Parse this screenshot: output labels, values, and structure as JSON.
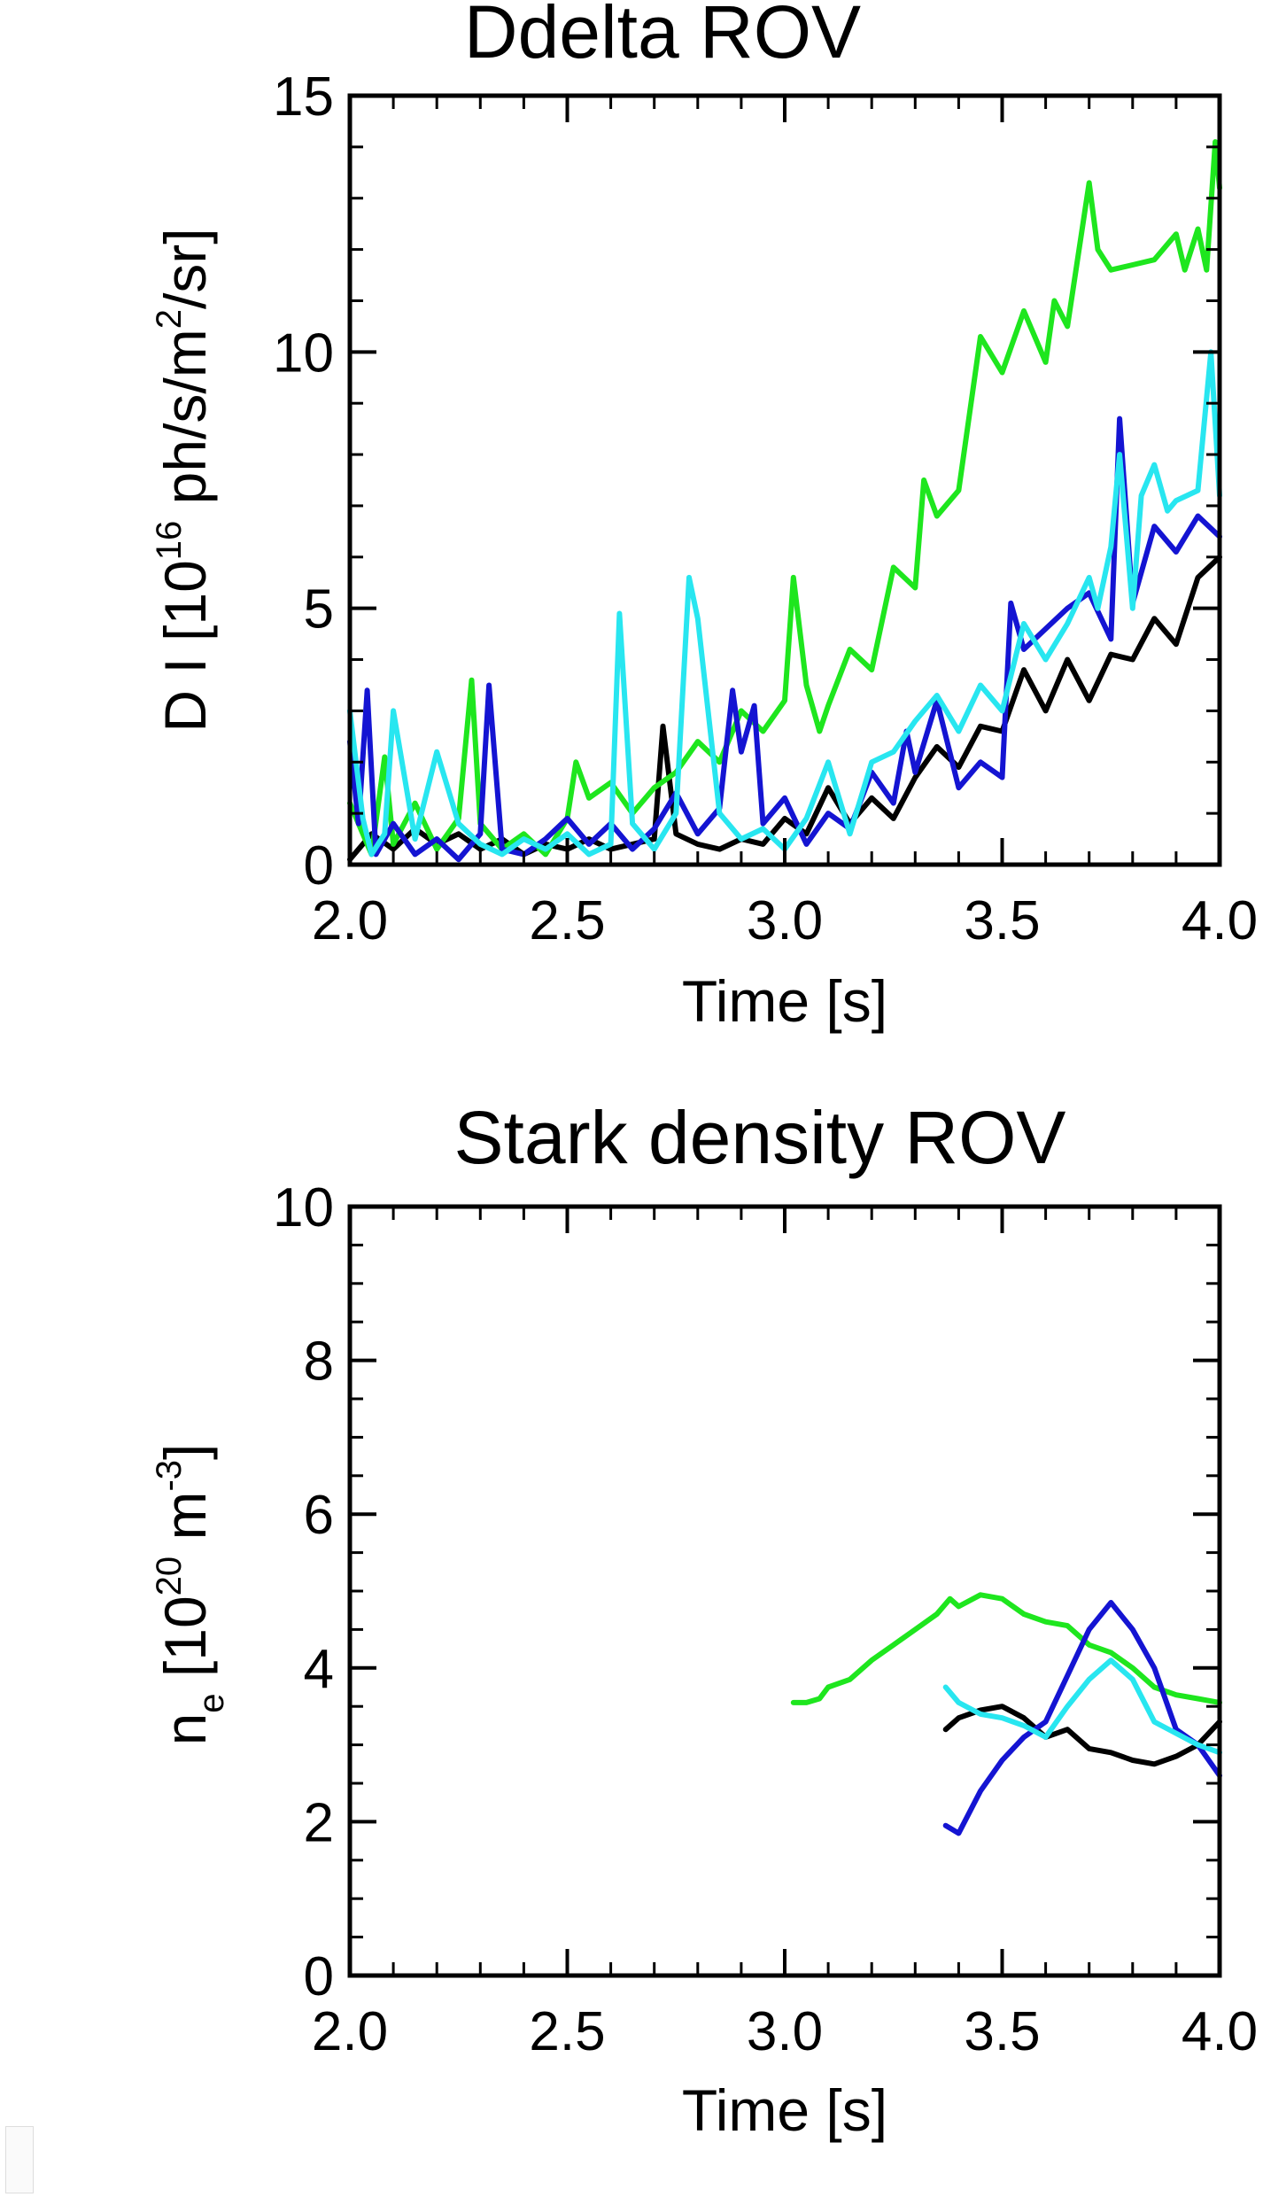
{
  "colors": {
    "black": "#000000",
    "green": "#1ee61e",
    "blue": "#1414d2",
    "cyan": "#28e6f0"
  },
  "chart_data": [
    {
      "type": "line",
      "title": "Ddelta ROV",
      "xlabel": "Time [s]",
      "ylabel": {
        "pre": "D I [10",
        "sup1": "16",
        "mid": " ph/s/m",
        "sup2": "2",
        "post": "/sr]"
      },
      "xlim": [
        2.0,
        4.0
      ],
      "ylim": [
        0,
        15
      ],
      "xticks": [
        "2.0",
        "2.5",
        "3.0",
        "3.5",
        "4.0"
      ],
      "yticks": [
        "0",
        "5",
        "10",
        "15"
      ],
      "series": [
        {
          "color": "#000000",
          "points": [
            [
              2.0,
              0.1
            ],
            [
              2.05,
              0.6
            ],
            [
              2.1,
              0.3
            ],
            [
              2.15,
              0.7
            ],
            [
              2.2,
              0.4
            ],
            [
              2.25,
              0.6
            ],
            [
              2.3,
              0.3
            ],
            [
              2.35,
              0.5
            ],
            [
              2.4,
              0.2
            ],
            [
              2.45,
              0.4
            ],
            [
              2.5,
              0.3
            ],
            [
              2.55,
              0.5
            ],
            [
              2.6,
              0.3
            ],
            [
              2.65,
              0.4
            ],
            [
              2.7,
              0.5
            ],
            [
              2.72,
              2.7
            ],
            [
              2.75,
              0.6
            ],
            [
              2.8,
              0.4
            ],
            [
              2.85,
              0.3
            ],
            [
              2.9,
              0.5
            ],
            [
              2.95,
              0.4
            ],
            [
              3.0,
              0.9
            ],
            [
              3.05,
              0.6
            ],
            [
              3.1,
              1.5
            ],
            [
              3.15,
              0.8
            ],
            [
              3.2,
              1.3
            ],
            [
              3.25,
              0.9
            ],
            [
              3.3,
              1.7
            ],
            [
              3.35,
              2.3
            ],
            [
              3.4,
              1.9
            ],
            [
              3.45,
              2.7
            ],
            [
              3.5,
              2.6
            ],
            [
              3.55,
              3.8
            ],
            [
              3.6,
              3.0
            ],
            [
              3.65,
              4.0
            ],
            [
              3.7,
              3.2
            ],
            [
              3.75,
              4.1
            ],
            [
              3.8,
              4.0
            ],
            [
              3.85,
              4.8
            ],
            [
              3.9,
              4.3
            ],
            [
              3.95,
              5.6
            ],
            [
              4.0,
              6.0
            ]
          ]
        },
        {
          "color": "#1ee61e",
          "points": [
            [
              2.0,
              1.2
            ],
            [
              2.03,
              0.6
            ],
            [
              2.05,
              0.2
            ],
            [
              2.08,
              2.1
            ],
            [
              2.1,
              0.4
            ],
            [
              2.15,
              1.2
            ],
            [
              2.2,
              0.3
            ],
            [
              2.25,
              0.9
            ],
            [
              2.28,
              3.6
            ],
            [
              2.3,
              0.8
            ],
            [
              2.35,
              0.3
            ],
            [
              2.4,
              0.6
            ],
            [
              2.45,
              0.2
            ],
            [
              2.5,
              0.9
            ],
            [
              2.52,
              2.0
            ],
            [
              2.55,
              1.3
            ],
            [
              2.6,
              1.6
            ],
            [
              2.65,
              1.0
            ],
            [
              2.7,
              1.5
            ],
            [
              2.75,
              1.8
            ],
            [
              2.8,
              2.4
            ],
            [
              2.85,
              2.0
            ],
            [
              2.9,
              3.0
            ],
            [
              2.95,
              2.6
            ],
            [
              3.0,
              3.2
            ],
            [
              3.02,
              5.6
            ],
            [
              3.05,
              3.5
            ],
            [
              3.08,
              2.6
            ],
            [
              3.1,
              3.1
            ],
            [
              3.15,
              4.2
            ],
            [
              3.2,
              3.8
            ],
            [
              3.25,
              5.8
            ],
            [
              3.3,
              5.4
            ],
            [
              3.32,
              7.5
            ],
            [
              3.35,
              6.8
            ],
            [
              3.4,
              7.3
            ],
            [
              3.45,
              10.3
            ],
            [
              3.5,
              9.6
            ],
            [
              3.55,
              10.8
            ],
            [
              3.6,
              9.8
            ],
            [
              3.62,
              11.0
            ],
            [
              3.65,
              10.5
            ],
            [
              3.7,
              13.3
            ],
            [
              3.72,
              12.0
            ],
            [
              3.75,
              11.6
            ],
            [
              3.8,
              11.7
            ],
            [
              3.85,
              11.8
            ],
            [
              3.9,
              12.3
            ],
            [
              3.92,
              11.6
            ],
            [
              3.95,
              12.4
            ],
            [
              3.97,
              11.6
            ],
            [
              3.99,
              14.1
            ],
            [
              4.0,
              13.2
            ]
          ]
        },
        {
          "color": "#1414d2",
          "points": [
            [
              2.0,
              2.4
            ],
            [
              2.02,
              0.8
            ],
            [
              2.04,
              3.4
            ],
            [
              2.06,
              0.2
            ],
            [
              2.1,
              0.8
            ],
            [
              2.15,
              0.2
            ],
            [
              2.2,
              0.5
            ],
            [
              2.25,
              0.1
            ],
            [
              2.3,
              0.6
            ],
            [
              2.32,
              3.5
            ],
            [
              2.35,
              0.3
            ],
            [
              2.4,
              0.2
            ],
            [
              2.45,
              0.5
            ],
            [
              2.5,
              0.9
            ],
            [
              2.55,
              0.4
            ],
            [
              2.6,
              0.8
            ],
            [
              2.65,
              0.3
            ],
            [
              2.7,
              0.7
            ],
            [
              2.75,
              1.4
            ],
            [
              2.8,
              0.6
            ],
            [
              2.85,
              1.1
            ],
            [
              2.88,
              3.4
            ],
            [
              2.9,
              2.2
            ],
            [
              2.93,
              3.1
            ],
            [
              2.95,
              0.8
            ],
            [
              3.0,
              1.3
            ],
            [
              3.05,
              0.4
            ],
            [
              3.1,
              1.0
            ],
            [
              3.15,
              0.7
            ],
            [
              3.2,
              1.8
            ],
            [
              3.25,
              1.2
            ],
            [
              3.28,
              2.6
            ],
            [
              3.3,
              1.8
            ],
            [
              3.35,
              3.2
            ],
            [
              3.4,
              1.5
            ],
            [
              3.45,
              2.0
            ],
            [
              3.5,
              1.7
            ],
            [
              3.52,
              5.1
            ],
            [
              3.55,
              4.2
            ],
            [
              3.6,
              4.6
            ],
            [
              3.65,
              5.0
            ],
            [
              3.7,
              5.3
            ],
            [
              3.75,
              4.4
            ],
            [
              3.77,
              8.7
            ],
            [
              3.8,
              5.1
            ],
            [
              3.85,
              6.6
            ],
            [
              3.9,
              6.1
            ],
            [
              3.95,
              6.8
            ],
            [
              4.0,
              6.4
            ]
          ]
        },
        {
          "color": "#28e6f0",
          "points": [
            [
              2.0,
              3.0
            ],
            [
              2.03,
              0.9
            ],
            [
              2.05,
              0.2
            ],
            [
              2.08,
              0.6
            ],
            [
              2.1,
              3.0
            ],
            [
              2.15,
              0.5
            ],
            [
              2.2,
              2.2
            ],
            [
              2.25,
              0.8
            ],
            [
              2.3,
              0.4
            ],
            [
              2.35,
              0.2
            ],
            [
              2.4,
              0.5
            ],
            [
              2.45,
              0.3
            ],
            [
              2.5,
              0.6
            ],
            [
              2.55,
              0.2
            ],
            [
              2.6,
              0.4
            ],
            [
              2.62,
              4.9
            ],
            [
              2.65,
              0.8
            ],
            [
              2.7,
              0.3
            ],
            [
              2.75,
              1.0
            ],
            [
              2.78,
              5.6
            ],
            [
              2.8,
              4.8
            ],
            [
              2.85,
              1.0
            ],
            [
              2.9,
              0.5
            ],
            [
              2.95,
              0.7
            ],
            [
              3.0,
              0.3
            ],
            [
              3.05,
              0.9
            ],
            [
              3.1,
              2.0
            ],
            [
              3.15,
              0.6
            ],
            [
              3.2,
              2.0
            ],
            [
              3.25,
              2.2
            ],
            [
              3.3,
              2.8
            ],
            [
              3.35,
              3.3
            ],
            [
              3.4,
              2.6
            ],
            [
              3.45,
              3.5
            ],
            [
              3.5,
              3.0
            ],
            [
              3.55,
              4.7
            ],
            [
              3.6,
              4.0
            ],
            [
              3.65,
              4.7
            ],
            [
              3.7,
              5.6
            ],
            [
              3.72,
              5.0
            ],
            [
              3.75,
              6.2
            ],
            [
              3.77,
              8.0
            ],
            [
              3.8,
              5.0
            ],
            [
              3.82,
              7.2
            ],
            [
              3.85,
              7.8
            ],
            [
              3.88,
              6.9
            ],
            [
              3.9,
              7.1
            ],
            [
              3.95,
              7.3
            ],
            [
              3.98,
              10.0
            ],
            [
              4.0,
              7.2
            ]
          ]
        }
      ]
    },
    {
      "type": "line",
      "title": "Stark density ROV",
      "xlabel": "Time [s]",
      "ylabel": {
        "pre": "n",
        "sub": "e",
        "mid": " [10",
        "sup1": "20",
        "mid2": " m",
        "sup2": "-3",
        "post": "]"
      },
      "xlim": [
        2.0,
        4.0
      ],
      "ylim": [
        0,
        10
      ],
      "xticks": [
        "2.0",
        "2.5",
        "3.0",
        "3.5",
        "4.0"
      ],
      "yticks": [
        "0",
        "2",
        "4",
        "6",
        "8",
        "10"
      ],
      "series": [
        {
          "color": "#1ee61e",
          "points": [
            [
              3.02,
              3.55
            ],
            [
              3.05,
              3.55
            ],
            [
              3.08,
              3.6
            ],
            [
              3.1,
              3.75
            ],
            [
              3.15,
              3.85
            ],
            [
              3.2,
              4.1
            ],
            [
              3.25,
              4.3
            ],
            [
              3.3,
              4.5
            ],
            [
              3.35,
              4.7
            ],
            [
              3.38,
              4.9
            ],
            [
              3.4,
              4.8
            ],
            [
              3.45,
              4.95
            ],
            [
              3.5,
              4.9
            ],
            [
              3.55,
              4.7
            ],
            [
              3.6,
              4.6
            ],
            [
              3.65,
              4.55
            ],
            [
              3.7,
              4.3
            ],
            [
              3.75,
              4.2
            ],
            [
              3.8,
              4.0
            ],
            [
              3.85,
              3.75
            ],
            [
              3.9,
              3.65
            ],
            [
              3.95,
              3.6
            ],
            [
              4.0,
              3.55
            ]
          ]
        },
        {
          "color": "#000000",
          "points": [
            [
              3.37,
              3.2
            ],
            [
              3.4,
              3.35
            ],
            [
              3.45,
              3.45
            ],
            [
              3.5,
              3.5
            ],
            [
              3.55,
              3.35
            ],
            [
              3.6,
              3.1
            ],
            [
              3.65,
              3.2
            ],
            [
              3.7,
              2.95
            ],
            [
              3.75,
              2.9
            ],
            [
              3.8,
              2.8
            ],
            [
              3.85,
              2.75
            ],
            [
              3.9,
              2.85
            ],
            [
              3.95,
              3.0
            ],
            [
              4.0,
              3.3
            ]
          ]
        },
        {
          "color": "#1414d2",
          "points": [
            [
              3.37,
              1.95
            ],
            [
              3.4,
              1.85
            ],
            [
              3.45,
              2.4
            ],
            [
              3.5,
              2.8
            ],
            [
              3.55,
              3.1
            ],
            [
              3.6,
              3.3
            ],
            [
              3.65,
              3.9
            ],
            [
              3.7,
              4.5
            ],
            [
              3.75,
              4.85
            ],
            [
              3.8,
              4.5
            ],
            [
              3.85,
              4.0
            ],
            [
              3.9,
              3.2
            ],
            [
              3.95,
              3.0
            ],
            [
              4.0,
              2.6
            ]
          ]
        },
        {
          "color": "#28e6f0",
          "points": [
            [
              3.37,
              3.75
            ],
            [
              3.4,
              3.55
            ],
            [
              3.45,
              3.4
            ],
            [
              3.5,
              3.35
            ],
            [
              3.55,
              3.25
            ],
            [
              3.6,
              3.1
            ],
            [
              3.65,
              3.5
            ],
            [
              3.7,
              3.85
            ],
            [
              3.75,
              4.1
            ],
            [
              3.8,
              3.85
            ],
            [
              3.85,
              3.3
            ],
            [
              3.9,
              3.15
            ],
            [
              3.95,
              3.0
            ],
            [
              4.0,
              2.9
            ]
          ]
        }
      ]
    }
  ]
}
